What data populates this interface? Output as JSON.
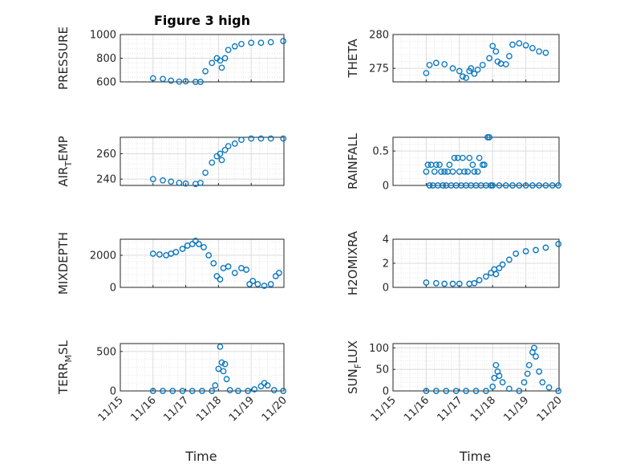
{
  "figure": {
    "title": "Figure 3 high"
  },
  "axis_x": {
    "label": "Time",
    "tick_labels": [
      "11/15",
      "11/16",
      "11/17",
      "11/18",
      "11/19",
      "11/20"
    ],
    "range": [
      "11/15",
      "11/20"
    ]
  },
  "chart_data": [
    {
      "type": "scatter",
      "ylabel_main": "PRESSURE",
      "ylabel_sub": "",
      "ylabel_tail": "",
      "ylim": [
        600,
        1000
      ],
      "yticks": [
        600,
        800,
        1000
      ],
      "grid": true,
      "color": "#0072BD",
      "x_day_range": [
        16.0,
        19.98
      ],
      "points": [
        [
          16.0,
          630
        ],
        [
          16.3,
          625
        ],
        [
          16.55,
          610
        ],
        [
          16.8,
          602
        ],
        [
          17.0,
          605
        ],
        [
          17.3,
          600
        ],
        [
          17.45,
          600
        ],
        [
          17.6,
          690
        ],
        [
          17.8,
          760
        ],
        [
          17.95,
          800
        ],
        [
          18.05,
          780
        ],
        [
          18.1,
          720
        ],
        [
          18.2,
          800
        ],
        [
          18.3,
          870
        ],
        [
          18.5,
          900
        ],
        [
          18.7,
          920
        ],
        [
          19.0,
          930
        ],
        [
          19.3,
          930
        ],
        [
          19.6,
          935
        ],
        [
          19.98,
          945
        ]
      ]
    },
    {
      "type": "scatter",
      "ylabel_main": "THETA",
      "ylabel_sub": "",
      "ylabel_tail": "",
      "ylim": [
        273,
        280
      ],
      "yticks": [
        275,
        280
      ],
      "grid": true,
      "color": "#0072BD",
      "x_day_range": [
        16.0,
        19.98
      ],
      "points": [
        [
          16.0,
          274.3
        ],
        [
          16.1,
          275.5
        ],
        [
          16.3,
          275.8
        ],
        [
          16.55,
          275.6
        ],
        [
          16.8,
          275.0
        ],
        [
          17.0,
          274.6
        ],
        [
          17.1,
          273.8
        ],
        [
          17.2,
          273.6
        ],
        [
          17.3,
          274.6
        ],
        [
          17.35,
          275.0
        ],
        [
          17.45,
          274.2
        ],
        [
          17.55,
          274.8
        ],
        [
          17.7,
          275.5
        ],
        [
          17.9,
          276.5
        ],
        [
          18.0,
          278.3
        ],
        [
          18.1,
          277.5
        ],
        [
          18.15,
          276.0
        ],
        [
          18.25,
          275.7
        ],
        [
          18.4,
          275.6
        ],
        [
          18.5,
          276.8
        ],
        [
          18.6,
          278.5
        ],
        [
          18.8,
          278.7
        ],
        [
          19.0,
          278.4
        ],
        [
          19.2,
          278.0
        ],
        [
          19.4,
          277.5
        ],
        [
          19.6,
          277.3
        ]
      ]
    },
    {
      "type": "scatter",
      "ylabel_main": "AIR",
      "ylabel_sub": "T",
      "ylabel_tail": "EMP",
      "ylim": [
        235,
        273
      ],
      "yticks": [
        240,
        260
      ],
      "grid": true,
      "color": "#0072BD",
      "x_day_range": [
        16.0,
        19.98
      ],
      "points": [
        [
          16.0,
          240
        ],
        [
          16.3,
          239
        ],
        [
          16.55,
          238
        ],
        [
          16.8,
          237
        ],
        [
          17.0,
          236.5
        ],
        [
          17.3,
          236.2
        ],
        [
          17.45,
          237
        ],
        [
          17.6,
          245
        ],
        [
          17.8,
          253
        ],
        [
          17.95,
          258
        ],
        [
          18.05,
          260
        ],
        [
          18.1,
          255
        ],
        [
          18.2,
          263
        ],
        [
          18.3,
          266
        ],
        [
          18.5,
          268
        ],
        [
          18.7,
          271
        ],
        [
          19.0,
          272
        ],
        [
          19.3,
          272
        ],
        [
          19.6,
          272
        ],
        [
          19.98,
          272
        ]
      ]
    },
    {
      "type": "scatter",
      "ylabel_main": "RAINFALL",
      "ylabel_sub": "",
      "ylabel_tail": "",
      "ylim": [
        0,
        0.7
      ],
      "yticks": [
        0,
        0.5
      ],
      "grid": true,
      "color": "#0072BD",
      "x_day_range": [
        16.0,
        19.98
      ],
      "points": [
        [
          16.0,
          0.2
        ],
        [
          16.05,
          0.3
        ],
        [
          16.1,
          0.0
        ],
        [
          16.15,
          0.3
        ],
        [
          16.2,
          0.0
        ],
        [
          16.25,
          0.2
        ],
        [
          16.3,
          0.3
        ],
        [
          16.35,
          0.0
        ],
        [
          16.4,
          0.3
        ],
        [
          16.45,
          0.2
        ],
        [
          16.5,
          0.0
        ],
        [
          16.55,
          0.2
        ],
        [
          16.6,
          0.0
        ],
        [
          16.65,
          0.2
        ],
        [
          16.7,
          0.3
        ],
        [
          16.75,
          0.0
        ],
        [
          16.8,
          0.2
        ],
        [
          16.85,
          0.4
        ],
        [
          16.9,
          0.0
        ],
        [
          16.95,
          0.4
        ],
        [
          17.0,
          0.2
        ],
        [
          17.05,
          0.0
        ],
        [
          17.1,
          0.4
        ],
        [
          17.15,
          0.2
        ],
        [
          17.2,
          0.0
        ],
        [
          17.25,
          0.2
        ],
        [
          17.3,
          0.4
        ],
        [
          17.35,
          0.0
        ],
        [
          17.4,
          0.3
        ],
        [
          17.45,
          0.2
        ],
        [
          17.5,
          0.0
        ],
        [
          17.55,
          0.2
        ],
        [
          17.6,
          0.4
        ],
        [
          17.65,
          0.0
        ],
        [
          17.7,
          0.3
        ],
        [
          17.75,
          0.3
        ],
        [
          17.8,
          0.0
        ],
        [
          17.85,
          0.7
        ],
        [
          17.9,
          0.7
        ],
        [
          17.95,
          0.0
        ],
        [
          18.0,
          0.0
        ],
        [
          18.2,
          0.0
        ],
        [
          18.4,
          0.0
        ],
        [
          18.6,
          0.0
        ],
        [
          18.8,
          0.0
        ],
        [
          19.0,
          0.0
        ],
        [
          19.2,
          0.0
        ],
        [
          19.4,
          0.0
        ],
        [
          19.6,
          0.0
        ],
        [
          19.8,
          0.0
        ],
        [
          19.98,
          0.0
        ]
      ]
    },
    {
      "type": "scatter",
      "ylabel_main": "MIXDEPTH",
      "ylabel_sub": "",
      "ylabel_tail": "",
      "ylim": [
        0,
        3000
      ],
      "yticks": [
        0,
        2000
      ],
      "grid": true,
      "color": "#0072BD",
      "x_day_range": [
        16.0,
        19.98
      ],
      "points": [
        [
          16.0,
          2100
        ],
        [
          16.2,
          2050
        ],
        [
          16.4,
          2000
        ],
        [
          16.55,
          2100
        ],
        [
          16.7,
          2200
        ],
        [
          16.9,
          2400
        ],
        [
          17.05,
          2600
        ],
        [
          17.2,
          2700
        ],
        [
          17.3,
          2900
        ],
        [
          17.4,
          2700
        ],
        [
          17.55,
          2500
        ],
        [
          17.7,
          2000
        ],
        [
          17.85,
          1500
        ],
        [
          17.95,
          700
        ],
        [
          18.05,
          500
        ],
        [
          18.15,
          1200
        ],
        [
          18.3,
          1300
        ],
        [
          18.5,
          900
        ],
        [
          18.7,
          1200
        ],
        [
          18.85,
          1100
        ],
        [
          18.95,
          200
        ],
        [
          19.05,
          400
        ],
        [
          19.2,
          200
        ],
        [
          19.4,
          100
        ],
        [
          19.6,
          200
        ],
        [
          19.75,
          700
        ],
        [
          19.85,
          900
        ]
      ]
    },
    {
      "type": "scatter",
      "ylabel_main": "H2OMIXRA",
      "ylabel_sub": "",
      "ylabel_tail": "",
      "ylim": [
        0,
        4
      ],
      "yticks": [
        0,
        2,
        4
      ],
      "grid": true,
      "color": "#0072BD",
      "x_day_range": [
        16.0,
        19.98
      ],
      "points": [
        [
          16.0,
          0.4
        ],
        [
          16.3,
          0.35
        ],
        [
          16.55,
          0.3
        ],
        [
          16.8,
          0.3
        ],
        [
          17.0,
          0.3
        ],
        [
          17.3,
          0.3
        ],
        [
          17.45,
          0.35
        ],
        [
          17.6,
          0.6
        ],
        [
          17.8,
          0.9
        ],
        [
          17.95,
          1.2
        ],
        [
          18.05,
          1.5
        ],
        [
          18.1,
          1.1
        ],
        [
          18.2,
          1.6
        ],
        [
          18.3,
          1.9
        ],
        [
          18.5,
          2.3
        ],
        [
          18.7,
          2.8
        ],
        [
          19.0,
          3.0
        ],
        [
          19.3,
          3.1
        ],
        [
          19.6,
          3.3
        ],
        [
          19.98,
          3.6
        ]
      ]
    },
    {
      "type": "scatter",
      "ylabel_main": "TERR",
      "ylabel_sub": "M",
      "ylabel_tail": "SL",
      "ylim": [
        0,
        600
      ],
      "yticks": [
        0,
        500
      ],
      "grid": true,
      "color": "#0072BD",
      "x_day_range": [
        16.0,
        19.98
      ],
      "points": [
        [
          16.0,
          0
        ],
        [
          16.3,
          0
        ],
        [
          16.6,
          0
        ],
        [
          16.9,
          0
        ],
        [
          17.2,
          0
        ],
        [
          17.5,
          0
        ],
        [
          17.8,
          0
        ],
        [
          17.9,
          70
        ],
        [
          18.0,
          280
        ],
        [
          18.05,
          560
        ],
        [
          18.1,
          360
        ],
        [
          18.15,
          250
        ],
        [
          18.2,
          340
        ],
        [
          18.25,
          150
        ],
        [
          18.35,
          10
        ],
        [
          18.6,
          0
        ],
        [
          18.9,
          0
        ],
        [
          19.1,
          20
        ],
        [
          19.3,
          60
        ],
        [
          19.4,
          100
        ],
        [
          19.5,
          70
        ],
        [
          19.7,
          10
        ],
        [
          19.98,
          0
        ]
      ]
    },
    {
      "type": "scatter",
      "ylabel_main": "SUN",
      "ylabel_sub": "F",
      "ylabel_tail": "LUX",
      "ylim": [
        0,
        110
      ],
      "yticks": [
        0,
        50,
        100
      ],
      "grid": true,
      "color": "#0072BD",
      "x_day_range": [
        16.0,
        19.98
      ],
      "points": [
        [
          16.0,
          0
        ],
        [
          16.3,
          0
        ],
        [
          16.6,
          0
        ],
        [
          16.9,
          0
        ],
        [
          17.2,
          0
        ],
        [
          17.5,
          0
        ],
        [
          17.8,
          0
        ],
        [
          18.0,
          10
        ],
        [
          18.05,
          30
        ],
        [
          18.1,
          60
        ],
        [
          18.15,
          45
        ],
        [
          18.2,
          35
        ],
        [
          18.3,
          20
        ],
        [
          18.5,
          5
        ],
        [
          18.8,
          0
        ],
        [
          18.95,
          20
        ],
        [
          19.05,
          40
        ],
        [
          19.1,
          60
        ],
        [
          19.2,
          90
        ],
        [
          19.25,
          100
        ],
        [
          19.3,
          80
        ],
        [
          19.4,
          45
        ],
        [
          19.5,
          20
        ],
        [
          19.7,
          8
        ],
        [
          19.98,
          0
        ]
      ]
    }
  ]
}
